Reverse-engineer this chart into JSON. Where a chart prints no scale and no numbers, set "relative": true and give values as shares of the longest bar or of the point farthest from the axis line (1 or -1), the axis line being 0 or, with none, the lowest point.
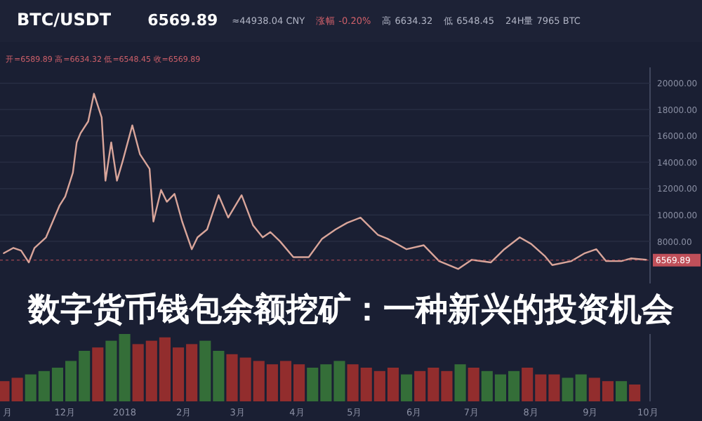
{
  "chart_data": [
    {
      "type": "line",
      "title": "BTC/USDT",
      "annotations": [
        "6569.89",
        "≈44938.04 CNY",
        "涨幅 -0.20%",
        "高 6634.32",
        "低 6548.45",
        "24H量 7965 BTC",
        "开=6589.89  高=6634.32  低=6548.45  收=6569.89"
      ],
      "x": [
        "2017-10-30",
        "2017-11-04",
        "2017-11-08",
        "2017-11-12",
        "2017-11-15",
        "2017-11-21",
        "2017-11-28",
        "2017-12-01",
        "2017-12-05",
        "2017-12-07",
        "2017-12-09",
        "2017-12-13",
        "2017-12-16",
        "2017-12-20",
        "2017-12-22",
        "2017-12-25",
        "2017-12-28",
        "2017-12-31",
        "2018-01-05",
        "2018-01-09",
        "2018-01-14",
        "2018-01-16",
        "2018-01-20",
        "2018-01-23",
        "2018-01-27",
        "2018-01-31",
        "2018-02-05",
        "2018-02-08",
        "2018-02-13",
        "2018-02-19",
        "2018-02-24",
        "2018-03-03",
        "2018-03-09",
        "2018-03-14",
        "2018-03-18",
        "2018-03-23",
        "2018-03-30",
        "2018-04-07",
        "2018-04-14",
        "2018-04-21",
        "2018-04-27",
        "2018-05-04",
        "2018-05-13",
        "2018-05-18",
        "2018-05-28",
        "2018-06-06",
        "2018-06-14",
        "2018-06-24",
        "2018-07-01",
        "2018-07-11",
        "2018-07-18",
        "2018-07-26",
        "2018-08-01",
        "2018-08-08",
        "2018-08-12",
        "2018-08-22",
        "2018-08-29",
        "2018-09-04",
        "2018-09-09",
        "2018-09-17",
        "2018-09-22",
        "2018-09-30"
      ],
      "series": [
        {
          "color": "#d9a59a",
          "values": [
            7100,
            7500,
            7300,
            6400,
            7500,
            8300,
            10700,
            11400,
            13200,
            15500,
            16200,
            17100,
            19200,
            17400,
            12600,
            15500,
            12600,
            14100,
            16800,
            14600,
            13500,
            9500,
            11900,
            11000,
            11600,
            9500,
            7400,
            8300,
            8900,
            11500,
            9800,
            11500,
            9200,
            8300,
            8700,
            8000,
            6800,
            6800,
            8200,
            8900,
            9400,
            9800,
            8500,
            8200,
            7400,
            7700,
            6500,
            5900,
            6600,
            6400,
            7400,
            8300,
            7800,
            6900,
            6200,
            6500,
            7100,
            7400,
            6500,
            6500,
            6700,
            6600
          ]
        }
      ],
      "xlim": [
        "2017-10-28",
        "2018-10-02"
      ],
      "ylim": [
        4800,
        21200
      ],
      "yticks": [
        {
          "value": 8000,
          "label": "8000.00"
        },
        {
          "value": 10000,
          "label": "10000.00"
        },
        {
          "value": 12000,
          "label": "12000.00"
        },
        {
          "value": 14000,
          "label": "14000.00"
        },
        {
          "value": 16000,
          "label": "16000.00"
        },
        {
          "value": 18000,
          "label": "18000.00"
        },
        {
          "value": 20000,
          "label": "20000.00"
        }
      ],
      "grid": "y",
      "tick_labels": "y",
      "ref_lines": [
        {
          "axis": "y",
          "value": 6569.89,
          "label": "6569.89",
          "color": "#c0505a"
        }
      ]
    },
    {
      "type": "bar",
      "relative": true,
      "title": "数字货币钱包余额挖矿：一种新兴的投资机会",
      "x": [
        "2017-10-30",
        "2017-11-06",
        "2017-11-13",
        "2017-11-20",
        "2017-11-27",
        "2017-12-04",
        "2017-12-11",
        "2017-12-18",
        "2017-12-25",
        "2018-01-01",
        "2018-01-08",
        "2018-01-15",
        "2018-01-22",
        "2018-01-29",
        "2018-02-05",
        "2018-02-12",
        "2018-02-19",
        "2018-02-26",
        "2018-03-05",
        "2018-03-12",
        "2018-03-19",
        "2018-03-26",
        "2018-04-02",
        "2018-04-09",
        "2018-04-16",
        "2018-04-23",
        "2018-04-30",
        "2018-05-07",
        "2018-05-14",
        "2018-05-21",
        "2018-05-28",
        "2018-06-04",
        "2018-06-11",
        "2018-06-18",
        "2018-06-25",
        "2018-07-02",
        "2018-07-09",
        "2018-07-16",
        "2018-07-23",
        "2018-07-30",
        "2018-08-06",
        "2018-08-13",
        "2018-08-20",
        "2018-08-27",
        "2018-09-03",
        "2018-09-10",
        "2018-09-17",
        "2018-09-24"
      ],
      "values": [
        0.3,
        0.35,
        0.4,
        0.45,
        0.5,
        0.6,
        0.75,
        0.8,
        0.9,
        1.0,
        0.85,
        0.9,
        0.95,
        0.8,
        0.85,
        0.9,
        0.75,
        0.7,
        0.65,
        0.6,
        0.55,
        0.6,
        0.55,
        0.5,
        0.55,
        0.6,
        0.55,
        0.5,
        0.45,
        0.5,
        0.4,
        0.45,
        0.5,
        0.45,
        0.55,
        0.5,
        0.45,
        0.4,
        0.45,
        0.5,
        0.4,
        0.4,
        0.35,
        0.4,
        0.35,
        0.3,
        0.3,
        0.25
      ],
      "colors": [
        "#a8302d",
        "#a8302d",
        "#3a7d3a",
        "#3a7d3a",
        "#3a7d3a",
        "#3a7d3a",
        "#3a7d3a",
        "#a8302d",
        "#3a7d3a",
        "#3a7d3a",
        "#a8302d",
        "#a8302d",
        "#a8302d",
        "#a8302d",
        "#a8302d",
        "#3a7d3a",
        "#3a7d3a",
        "#a8302d",
        "#a8302d",
        "#a8302d",
        "#a8302d",
        "#a8302d",
        "#a8302d",
        "#3a7d3a",
        "#3a7d3a",
        "#3a7d3a",
        "#a8302d",
        "#a8302d",
        "#a8302d",
        "#a8302d",
        "#3a7d3a",
        "#a8302d",
        "#a8302d",
        "#a8302d",
        "#3a7d3a",
        "#a8302d",
        "#3a7d3a",
        "#3a7d3a",
        "#3a7d3a",
        "#a8302d",
        "#a8302d",
        "#a8302d",
        "#3a7d3a",
        "#3a7d3a",
        "#a8302d",
        "#a8302d",
        "#3a7d3a",
        "#a8302d"
      ],
      "xlim": [
        "2017-10-28",
        "2018-10-02"
      ],
      "xticks": [
        {
          "value": "2017-11-01",
          "label": "月"
        },
        {
          "value": "2017-12-01",
          "label": "12月"
        },
        {
          "value": "2018-01-01",
          "label": "2018"
        },
        {
          "value": "2018-02-01",
          "label": "2月"
        },
        {
          "value": "2018-03-01",
          "label": "3月"
        },
        {
          "value": "2018-04-01",
          "label": "4月"
        },
        {
          "value": "2018-05-01",
          "label": "5月"
        },
        {
          "value": "2018-06-01",
          "label": "6月"
        },
        {
          "value": "2018-07-01",
          "label": "7月"
        },
        {
          "value": "2018-08-01",
          "label": "8月"
        },
        {
          "value": "2018-09-01",
          "label": "9月"
        },
        {
          "value": "2018-10-01",
          "label": "10月"
        }
      ],
      "tick_labels": "x"
    }
  ]
}
